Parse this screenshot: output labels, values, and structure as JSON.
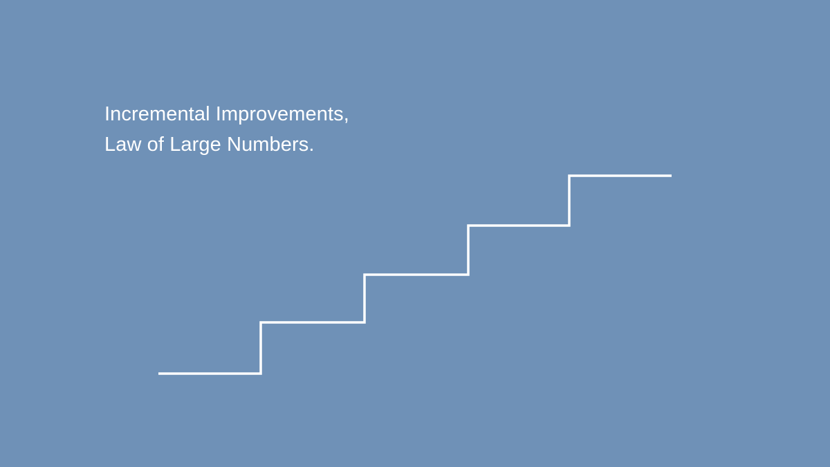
{
  "slide": {
    "background_color": "#6f91b7",
    "line_color": "#ffffff",
    "headline": {
      "line1": "Incremental Improvements,",
      "line2": "Law of Large Numbers."
    },
    "graphic": {
      "icon": "staircase-line",
      "steps": 5
    }
  }
}
